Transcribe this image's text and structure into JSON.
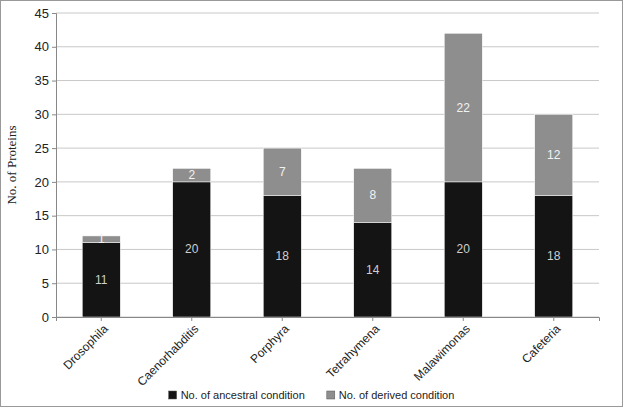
{
  "chart_data": {
    "type": "bar",
    "stacked": true,
    "data_labels": true,
    "grid": true,
    "legend": "bottom",
    "y_label": "No. of Proteins",
    "categories": [
      "Drosophila",
      "Caenorhabditis",
      "Porphyra",
      "Tetrahymena",
      "Malawimonas",
      "Cafeteria"
    ],
    "series": [
      {
        "name": "No. of ancestral condition",
        "color": "#141414",
        "values": [
          11,
          20,
          18,
          14,
          20,
          18
        ]
      },
      {
        "name": "No. of derived condition",
        "color": "#8e8e8e",
        "values": [
          1,
          2,
          7,
          8,
          22,
          12
        ]
      }
    ],
    "ylim": [
      0,
      45
    ],
    "yticks": [
      0,
      5,
      10,
      15,
      20,
      25,
      30,
      35,
      40,
      45
    ]
  }
}
